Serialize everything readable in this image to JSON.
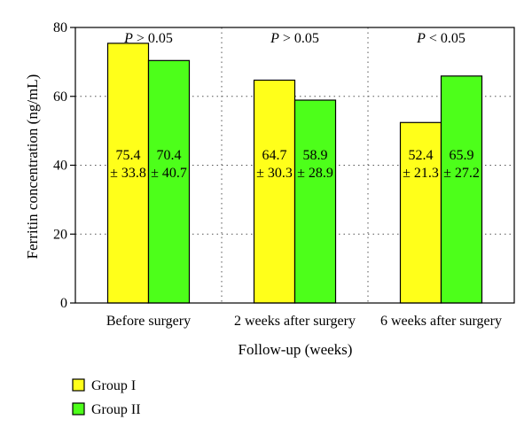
{
  "chart_data": {
    "type": "bar",
    "xlabel": "Follow-up (weeks)",
    "ylabel": "Ferritin concentration (ng/mL)",
    "ylim": [
      0,
      80
    ],
    "yticks": [
      0,
      20,
      40,
      60,
      80
    ],
    "grid": true,
    "legend_position": "bottom-left",
    "categories": [
      "Before surgery",
      "2 weeks after surgery",
      "6 weeks after surgery"
    ],
    "p_value_labels": [
      {
        "symbol": "P",
        "text": " > 0.05"
      },
      {
        "symbol": "P",
        "text": " > 0.05"
      },
      {
        "symbol": "P",
        "text": " < 0.05"
      }
    ],
    "series": [
      {
        "name": "Group I",
        "color": "#ffff1a",
        "values": [
          75.4,
          64.7,
          52.4
        ],
        "sd": [
          33.8,
          30.3,
          21.3
        ],
        "labels_top": [
          "75.4",
          "64.7",
          "52.4"
        ],
        "labels_bottom": [
          "± 33.8",
          "± 30.3",
          "± 21.3"
        ]
      },
      {
        "name": "Group II",
        "color": "#4dff1a",
        "values": [
          70.4,
          58.9,
          65.9
        ],
        "sd": [
          40.7,
          28.9,
          27.2
        ],
        "labels_top": [
          "70.4",
          "58.9",
          "65.9"
        ],
        "labels_bottom": [
          "± 40.7",
          "± 28.9",
          "± 27.2"
        ]
      }
    ]
  }
}
